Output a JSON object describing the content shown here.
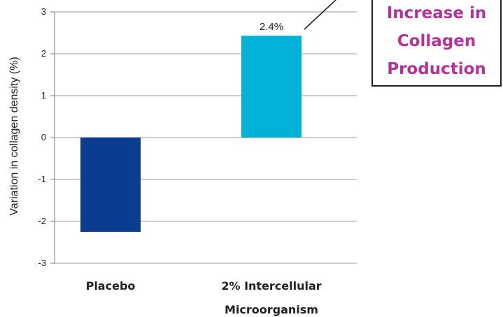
{
  "chart_data": {
    "type": "bar",
    "categories": [
      "Placebo",
      "2% Intercellular Microorganism"
    ],
    "category_lines": [
      [
        "Placebo"
      ],
      [
        "2% Intercellular",
        "Microorganism"
      ]
    ],
    "values": [
      -2.25,
      2.43
    ],
    "colors": [
      "#0a3d8f",
      "#00b2d6"
    ],
    "data_labels": [
      null,
      "2.4%"
    ],
    "title": "",
    "xlabel": "",
    "ylabel": "Variation in collagen density (%)",
    "ylim": [
      -3,
      3
    ],
    "yticks": [
      3,
      2,
      1,
      0,
      -1,
      -2,
      -3
    ],
    "grid": true
  },
  "callout": {
    "lines": [
      "Increase in",
      "Collagen",
      "Production"
    ],
    "color": "#b5329a"
  }
}
